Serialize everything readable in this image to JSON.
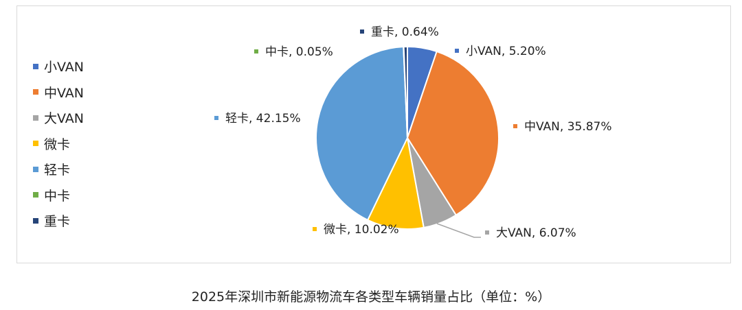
{
  "chart_data": {
    "type": "pie",
    "caption": "2025年深圳市新能源物流车各类型车辆销量占比（单位：%）",
    "legend_position": "left",
    "slices": [
      {
        "label": "小VAN",
        "value": 5.2,
        "data_label": "小VAN, 5.20%",
        "color": "#4472c4"
      },
      {
        "label": "中VAN",
        "value": 35.87,
        "data_label": "中VAN, 35.87%",
        "color": "#ed7d31"
      },
      {
        "label": "大VAN",
        "value": 6.07,
        "data_label": "大VAN, 6.07%",
        "color": "#a5a5a5"
      },
      {
        "label": "微卡",
        "value": 10.02,
        "data_label": "微卡, 10.02%",
        "color": "#ffc000"
      },
      {
        "label": "轻卡",
        "value": 42.15,
        "data_label": "轻卡, 42.15%",
        "color": "#5b9bd5"
      },
      {
        "label": "中卡",
        "value": 0.05,
        "data_label": "中卡, 0.05%",
        "color": "#70ad47"
      },
      {
        "label": "重卡",
        "value": 0.64,
        "data_label": "重卡, 0.64%",
        "color": "#264478"
      }
    ]
  }
}
